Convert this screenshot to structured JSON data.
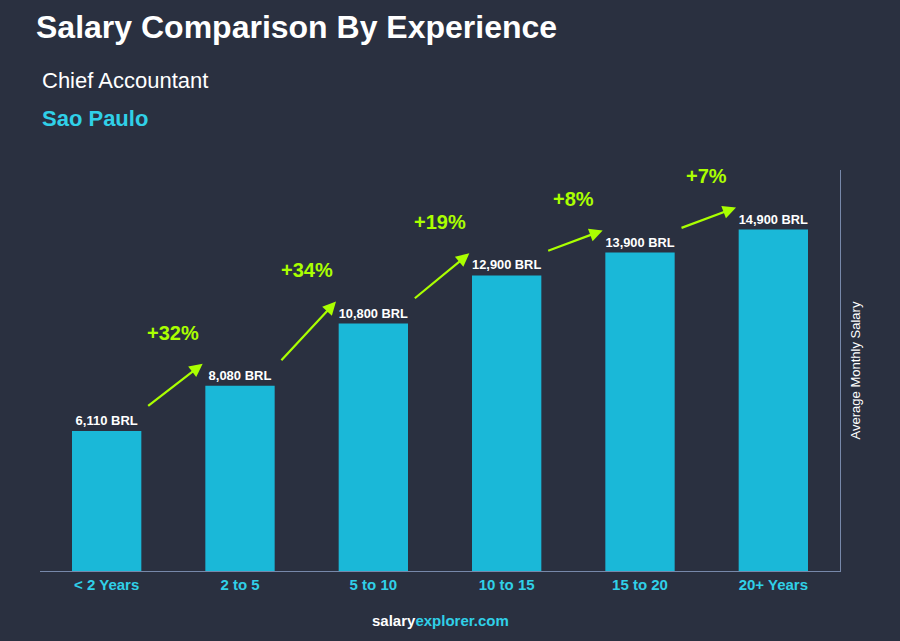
{
  "chart_data": {
    "type": "bar",
    "title": "Salary Comparison By Experience",
    "subtitle": "Chief Accountant",
    "city": "Sao Paulo",
    "ylabel": "Average Monthly Salary",
    "footer": [
      "salary",
      "explorer.com"
    ],
    "categories": [
      "< 2 Years",
      "2 to 5",
      "5 to 10",
      "10 to 15",
      "15 to 20",
      "20+ Years"
    ],
    "values": [
      6110,
      8080,
      10800,
      12900,
      13900,
      14900
    ],
    "value_labels": [
      "6,110 BRL",
      "8,080 BRL",
      "10,800 BRL",
      "12,900 BRL",
      "13,900 BRL",
      "14,900 BRL"
    ],
    "annotations": [
      "+32%",
      "+34%",
      "+19%",
      "+8%",
      "+7%"
    ],
    "color": "#1ab8d8",
    "ylim": [
      0,
      17500
    ],
    "grid": false,
    "data_labels": true,
    "tick_labels": "x"
  }
}
